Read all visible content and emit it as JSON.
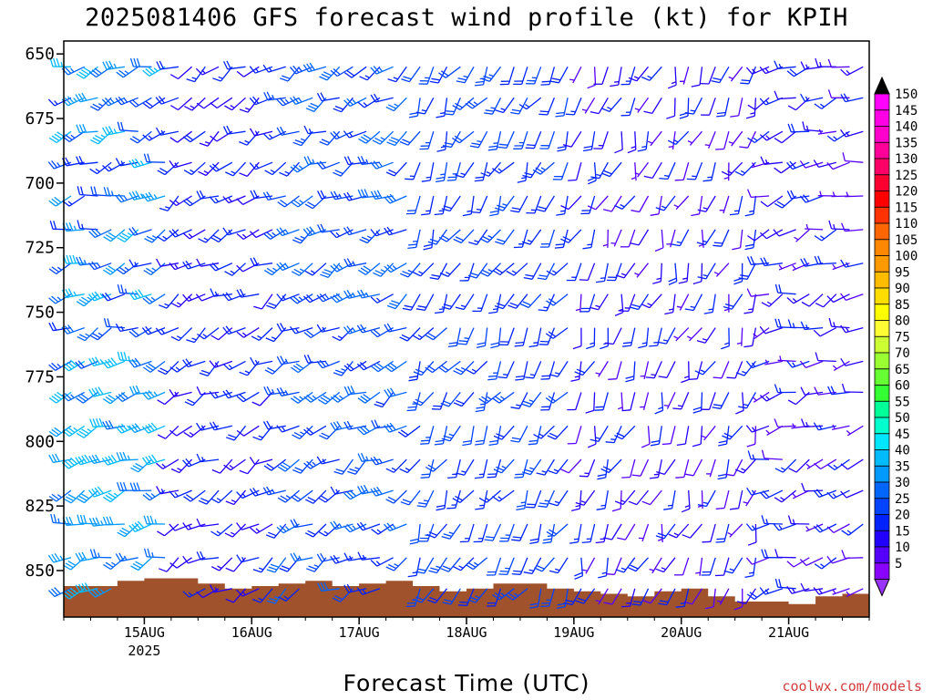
{
  "chart_data": {
    "type": "wind-barb profile",
    "title": "2025081406 GFS forecast wind profile (kt) for KPIH",
    "xlabel": "Forecast Time (UTC)",
    "ylabel": "",
    "credit": "coolwx.com/models",
    "y_axis": {
      "ticks": [
        650,
        675,
        700,
        725,
        750,
        775,
        800,
        825,
        850
      ],
      "range": [
        645,
        868
      ],
      "inverted": true
    },
    "x_axis": {
      "ticks": [
        {
          "label": "15AUG",
          "sublabel": "2025",
          "date": "2025-08-15T00Z"
        },
        {
          "label": "16AUG",
          "sublabel": "",
          "date": "2025-08-16T00Z"
        },
        {
          "label": "17AUG",
          "sublabel": "",
          "date": "2025-08-17T00Z"
        },
        {
          "label": "18AUG",
          "sublabel": "",
          "date": "2025-08-18T00Z"
        },
        {
          "label": "19AUG",
          "sublabel": "",
          "date": "2025-08-19T00Z"
        },
        {
          "label": "20AUG",
          "sublabel": "",
          "date": "2025-08-20T00Z"
        },
        {
          "label": "21AUG",
          "sublabel": "",
          "date": "2025-08-21T00Z"
        }
      ],
      "range": [
        "2025-08-14T06Z",
        "2025-08-21T18Z"
      ],
      "step_hours": 3
    },
    "pressure_levels": [
      655,
      667,
      680,
      692,
      705,
      718,
      731,
      743,
      756,
      769,
      781,
      794,
      807,
      819,
      832,
      845,
      857
    ],
    "surface_pressure": {
      "hours_from_start": [
        0,
        6,
        12,
        18,
        24,
        30,
        36,
        42,
        48,
        54,
        60,
        66,
        72,
        78,
        84,
        90,
        96,
        102,
        108,
        114,
        120,
        126,
        132,
        138,
        144,
        150,
        156,
        162,
        168,
        174,
        180
      ],
      "values": [
        856,
        856,
        854,
        853,
        853,
        855,
        857,
        856,
        855,
        854,
        856,
        855,
        854,
        856,
        858,
        857,
        855,
        855,
        857,
        858,
        859,
        860,
        858,
        857,
        860,
        862,
        862,
        863,
        860,
        859,
        859
      ]
    },
    "wind_regimes": [
      {
        "period": "14AUG 06Z to 15AUG 06Z",
        "speed_kt": [
          15,
          40
        ],
        "direction_deg": 250
      },
      {
        "period": "15AUG 06Z to 16AUG 06Z",
        "speed_kt": [
          10,
          20
        ],
        "direction_deg": 240
      },
      {
        "period": "16AUG 12Z to 17AUG 06Z",
        "speed_kt": [
          15,
          30
        ],
        "direction_deg": 240
      },
      {
        "period": "17AUG 06Z to 19AUG 00Z",
        "speed_kt": [
          15,
          25
        ],
        "direction_deg": 210
      },
      {
        "period": "19AUG 00Z to 20AUG 18Z",
        "speed_kt": [
          5,
          20
        ],
        "direction_deg": 200
      },
      {
        "period": "20AUG 18Z to 21AUG 18Z",
        "speed_kt": [
          5,
          20
        ],
        "direction_deg": 250
      }
    ],
    "grid": false,
    "legend": "right colorbar"
  },
  "colorbar": {
    "units": "kt",
    "labels": [
      "150",
      "145",
      "140",
      "135",
      "130",
      "125",
      "120",
      "115",
      "110",
      "105",
      "100",
      "95",
      "90",
      "85",
      "80",
      "75",
      "70",
      "65",
      "60",
      "55",
      "50",
      "45",
      "40",
      "35",
      "30",
      "25",
      "20",
      "15",
      "10",
      "5"
    ],
    "colors": [
      "#ff00ff",
      "#ff00e6",
      "#ff00cc",
      "#ff0099",
      "#ff0066",
      "#ff0033",
      "#ff0000",
      "#ff3300",
      "#ff6600",
      "#ff8800",
      "#ff9900",
      "#ffbb00",
      "#ffdd00",
      "#ffff00",
      "#ffff33",
      "#ccff33",
      "#99ff33",
      "#66ff33",
      "#33ff33",
      "#00ff99",
      "#00ffcc",
      "#00e6ff",
      "#00bbff",
      "#0099ff",
      "#0066ff",
      "#0044ff",
      "#0022ff",
      "#2200ff",
      "#5500ff",
      "#8800ff"
    ],
    "top_cap_color": "#000000",
    "bottom_cap_color": "#9933ff"
  },
  "colors": {
    "terrain": "#a0522d",
    "frame": "#000000",
    "credit": "#d23c3c"
  }
}
